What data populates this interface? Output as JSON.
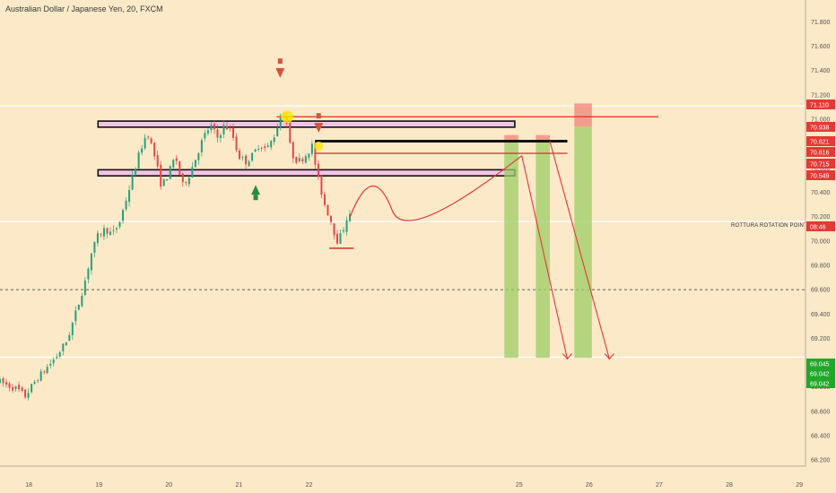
{
  "chart_data": {
    "type": "candlestick",
    "title": "Australian Dollar / Japanese Yen, 20, FXCM",
    "ylim": [
      68.15,
      71.98
    ],
    "xlim": [
      17.6,
      29.1
    ],
    "y_ticks": [
      68.2,
      68.4,
      68.6,
      68.8,
      69.0,
      69.2,
      69.4,
      69.6,
      69.8,
      70.0,
      70.2,
      70.4,
      70.6,
      70.8,
      71.0,
      71.2,
      71.4,
      71.6,
      71.8
    ],
    "y_tick_labels": [
      "68.200",
      "68.400",
      "68.600",
      "68.800",
      "69.000",
      "69.200",
      "69.400",
      "69.600",
      "69.800",
      "70.000",
      "70.200",
      "70.400",
      "70.600",
      "70.800",
      "71.000",
      "71.200",
      "71.400",
      "71.600",
      "71.800"
    ],
    "x_ticks": [
      18,
      19,
      20,
      21,
      22,
      25,
      26,
      27,
      28,
      29
    ],
    "x_tick_labels": [
      "18",
      "19",
      "20",
      "21",
      "22",
      "25",
      "26",
      "27",
      "28",
      "29"
    ],
    "price_path": [
      [
        17.6,
        68.85
      ],
      [
        17.9,
        68.78
      ],
      [
        18.0,
        68.72
      ],
      [
        18.15,
        68.85
      ],
      [
        18.3,
        68.95
      ],
      [
        18.45,
        69.05
      ],
      [
        18.6,
        69.18
      ],
      [
        18.75,
        69.45
      ],
      [
        18.85,
        69.65
      ],
      [
        18.95,
        69.9
      ],
      [
        19.05,
        70.05
      ],
      [
        19.15,
        70.1
      ],
      [
        19.25,
        70.05
      ],
      [
        19.35,
        70.15
      ],
      [
        19.45,
        70.35
      ],
      [
        19.55,
        70.55
      ],
      [
        19.65,
        70.75
      ],
      [
        19.75,
        70.9
      ],
      [
        19.85,
        70.7
      ],
      [
        19.95,
        70.45
      ],
      [
        20.05,
        70.55
      ],
      [
        20.15,
        70.7
      ],
      [
        20.25,
        70.45
      ],
      [
        20.35,
        70.55
      ],
      [
        20.45,
        70.7
      ],
      [
        20.55,
        70.85
      ],
      [
        20.65,
        70.95
      ],
      [
        20.75,
        70.85
      ],
      [
        20.85,
        70.95
      ],
      [
        20.95,
        70.9
      ],
      [
        21.05,
        70.7
      ],
      [
        21.15,
        70.65
      ],
      [
        21.25,
        70.7
      ],
      [
        21.35,
        70.8
      ],
      [
        21.45,
        70.75
      ],
      [
        21.55,
        70.85
      ],
      [
        21.65,
        71.02
      ],
      [
        21.72,
        71.05
      ],
      [
        21.8,
        70.72
      ],
      [
        21.9,
        70.65
      ],
      [
        22.0,
        70.7
      ],
      [
        22.1,
        70.78
      ],
      [
        22.18,
        70.52
      ],
      [
        22.28,
        70.3
      ],
      [
        22.38,
        70.15
      ],
      [
        22.45,
        70.0
      ],
      [
        22.52,
        70.05
      ],
      [
        22.6,
        70.2
      ]
    ],
    "horizontal_levels": [
      {
        "price": 71.11,
        "label": "71.110",
        "color": "#e53935"
      },
      {
        "price": 70.938,
        "label": "70.938",
        "color": "#e53935"
      },
      {
        "price": 70.821,
        "label": "70.821",
        "color": "#e53935"
      },
      {
        "price": 70.816,
        "label": "70.816",
        "color": "#e53935"
      },
      {
        "price": 70.715,
        "label": "70.715",
        "color": "#e53935"
      },
      {
        "price": 70.549,
        "label": "70.549",
        "color": "#e53935"
      },
      {
        "price": 70.16,
        "label": "08:46",
        "color": "#e53935"
      },
      {
        "price": 69.045,
        "label": "69.045",
        "color": "#22a72a"
      },
      {
        "price": 69.042,
        "label": "69.042",
        "color": "#22a72a"
      },
      {
        "price": 69.042,
        "label": "69.042",
        "color": "#22a72a"
      }
    ],
    "zones": [
      {
        "x": [
          19.0,
          24.95
        ],
        "y": [
          70.935,
          70.985
        ]
      },
      {
        "x": [
          19.0,
          24.95
        ],
        "y": [
          70.535,
          70.585
        ]
      }
    ],
    "trade_targets": [
      {
        "x": [
          24.8,
          25.0
        ],
        "entry": 70.82,
        "stop": 70.87,
        "target": 69.04
      },
      {
        "x": [
          25.25,
          25.45
        ],
        "entry": 70.82,
        "stop": 70.87,
        "target": 69.04
      },
      {
        "x": [
          25.8,
          26.05
        ],
        "entry": 70.94,
        "stop": 71.13,
        "target": 69.04
      }
    ],
    "annotation": "ROTTURA ROTATION POINT",
    "colors": {
      "up": "#26a17a",
      "down": "#e04848",
      "bg": "#fbe9c8",
      "zone_fill": "#f1c4e6",
      "target": "#9ccc65",
      "stop": "#ef7b74"
    }
  }
}
